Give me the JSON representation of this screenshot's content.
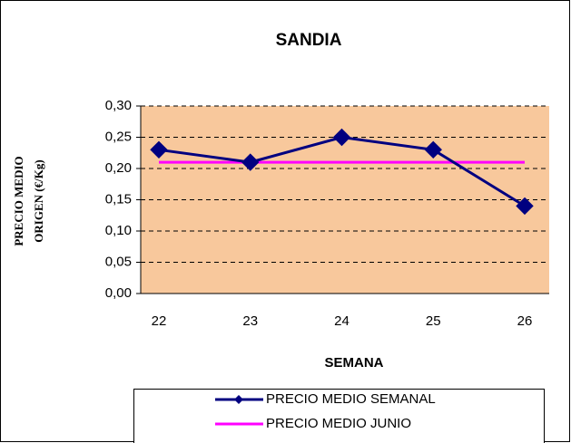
{
  "chart_data": {
    "type": "line",
    "title": "SANDIA",
    "xlabel": "SEMANA",
    "ylabel": [
      "PRECIO MEDIO",
      "ORIGEN (€/Kg)"
    ],
    "categories": [
      "22",
      "23",
      "24",
      "25",
      "26"
    ],
    "series": [
      {
        "name": "PRECIO MEDIO SEMANAL",
        "color": "#000080",
        "marker": "diamond",
        "values": [
          0.23,
          0.21,
          0.25,
          0.23,
          0.14
        ]
      },
      {
        "name": "PRECIO MEDIO JUNIO",
        "color": "#ff00ff",
        "values": [
          0.21,
          0.21,
          0.21,
          0.21,
          0.21
        ]
      }
    ],
    "ylim": [
      0,
      0.3
    ],
    "yticks": [
      {
        "value": 0,
        "label": "0,00"
      },
      {
        "value": 0.05,
        "label": "0,05"
      },
      {
        "value": 0.1,
        "label": "0,10"
      },
      {
        "value": 0.15,
        "label": "0,15"
      },
      {
        "value": 0.2,
        "label": "0,20"
      },
      {
        "value": 0.25,
        "label": "0,25"
      },
      {
        "value": 0.3,
        "label": "0,30"
      }
    ],
    "grid": true,
    "plot_background": "#f8c89c",
    "legend": "bottom"
  }
}
